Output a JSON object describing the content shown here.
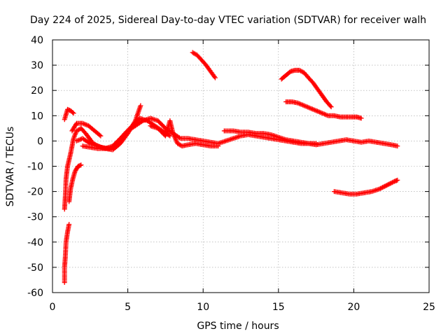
{
  "chart_data": {
    "type": "scatter",
    "title": "Day 224 of 2025, Sidereal Day-to-day VTEC variation (SDTVAR) for receiver walh",
    "xlabel": "GPS time / hours",
    "ylabel": "SDTVAR / TECUs",
    "xlim": [
      0,
      25
    ],
    "ylim": [
      -60,
      40
    ],
    "xticks": [
      0,
      5,
      10,
      15,
      20,
      25
    ],
    "yticks": [
      -60,
      -50,
      -40,
      -30,
      -20,
      -10,
      0,
      10,
      20,
      30,
      40
    ],
    "grid": true,
    "marker": "+",
    "color": "#ff0000",
    "series": [
      {
        "name": "arc-1",
        "points": [
          [
            0.8,
            -56
          ],
          [
            0.8,
            -50
          ],
          [
            0.85,
            -46
          ],
          [
            0.9,
            -40
          ],
          [
            1.0,
            -36
          ],
          [
            1.1,
            -33
          ]
        ]
      },
      {
        "name": "arc-2",
        "points": [
          [
            0.8,
            -27
          ],
          [
            0.85,
            -22
          ],
          [
            0.9,
            -15
          ],
          [
            1.0,
            -10
          ],
          [
            1.2,
            -5
          ],
          [
            1.4,
            1
          ],
          [
            1.6,
            4
          ],
          [
            1.9,
            5
          ],
          [
            2.2,
            3
          ],
          [
            2.7,
            -1
          ],
          [
            3.2,
            -2.5
          ],
          [
            3.8,
            -3
          ],
          [
            4.3,
            -1
          ],
          [
            4.8,
            3
          ],
          [
            5.3,
            6
          ],
          [
            5.8,
            9
          ],
          [
            6.3,
            8
          ],
          [
            6.8,
            6
          ],
          [
            7.3,
            4
          ],
          [
            7.8,
            2
          ]
        ]
      },
      {
        "name": "arc-3",
        "points": [
          [
            1.1,
            -24
          ],
          [
            1.2,
            -19
          ],
          [
            1.35,
            -15
          ],
          [
            1.5,
            -12
          ],
          [
            1.7,
            -10
          ],
          [
            1.9,
            -9.5
          ]
        ]
      },
      {
        "name": "arc-4",
        "points": [
          [
            0.8,
            8.5
          ],
          [
            1.0,
            12.5
          ],
          [
            1.2,
            12
          ],
          [
            1.4,
            11
          ]
        ]
      },
      {
        "name": "arc-5",
        "points": [
          [
            1.3,
            4
          ],
          [
            1.6,
            7
          ],
          [
            2.0,
            7
          ],
          [
            2.4,
            6
          ],
          [
            2.8,
            4
          ],
          [
            3.2,
            2
          ]
        ]
      },
      {
        "name": "arc-6",
        "points": [
          [
            1.6,
            0
          ],
          [
            2.0,
            1
          ],
          [
            2.5,
            -1
          ],
          [
            3.0,
            -2
          ],
          [
            3.5,
            -3
          ],
          [
            4.0,
            -3.5
          ],
          [
            4.5,
            -1
          ],
          [
            5.0,
            3
          ],
          [
            5.5,
            8
          ],
          [
            5.85,
            14
          ]
        ]
      },
      {
        "name": "arc-7",
        "points": [
          [
            2.0,
            -2
          ],
          [
            2.5,
            -2.5
          ],
          [
            3.0,
            -3
          ],
          [
            3.5,
            -3
          ],
          [
            4.0,
            -2
          ],
          [
            4.5,
            1
          ],
          [
            5.0,
            4
          ],
          [
            5.5,
            6
          ],
          [
            6.0,
            8
          ],
          [
            6.5,
            9
          ],
          [
            7.0,
            8
          ],
          [
            7.5,
            5
          ],
          [
            8.0,
            3
          ],
          [
            8.5,
            1
          ],
          [
            9.0,
            1
          ],
          [
            9.5,
            0.5
          ],
          [
            10.0,
            0
          ],
          [
            10.5,
            -0.5
          ],
          [
            11.0,
            -1
          ],
          [
            11.5,
            0
          ],
          [
            12.0,
            1
          ],
          [
            12.5,
            2
          ],
          [
            13.0,
            2.5
          ],
          [
            13.5,
            2
          ],
          [
            14.0,
            1.5
          ],
          [
            14.5,
            1
          ],
          [
            15.0,
            0.5
          ],
          [
            15.5,
            0
          ],
          [
            16.0,
            -0.5
          ],
          [
            16.5,
            -1
          ],
          [
            17.0,
            -1
          ],
          [
            17.5,
            -1.5
          ],
          [
            18.0,
            -1
          ],
          [
            18.5,
            -0.5
          ],
          [
            19.0,
            0
          ],
          [
            19.5,
            0.5
          ],
          [
            20.0,
            0
          ],
          [
            20.5,
            -0.5
          ],
          [
            21.0,
            0
          ],
          [
            21.5,
            -0.5
          ],
          [
            22.0,
            -1
          ],
          [
            22.5,
            -1.5
          ],
          [
            22.9,
            -2
          ]
        ]
      },
      {
        "name": "arc-8",
        "points": [
          [
            6.5,
            6
          ],
          [
            7.0,
            5
          ],
          [
            7.5,
            2
          ],
          [
            7.8,
            8
          ],
          [
            8.0,
            3
          ],
          [
            8.3,
            -1
          ],
          [
            8.6,
            -2
          ],
          [
            9.0,
            -1.5
          ],
          [
            9.5,
            -1
          ],
          [
            10.0,
            -1.5
          ],
          [
            10.5,
            -2
          ],
          [
            11.0,
            -2
          ]
        ]
      },
      {
        "name": "arc-9",
        "points": [
          [
            11.4,
            4
          ],
          [
            12.0,
            4
          ],
          [
            12.5,
            3.5
          ],
          [
            13.0,
            3.5
          ],
          [
            13.5,
            3
          ],
          [
            14.0,
            3
          ],
          [
            14.5,
            2.5
          ],
          [
            15.0,
            1.5
          ],
          [
            15.5,
            0.5
          ],
          [
            16.0,
            0
          ],
          [
            16.5,
            -0.5
          ],
          [
            17.0,
            -1
          ],
          [
            17.5,
            -1
          ]
        ]
      },
      {
        "name": "arc-10",
        "points": [
          [
            9.3,
            35
          ],
          [
            9.6,
            34
          ],
          [
            9.9,
            32
          ],
          [
            10.2,
            30
          ],
          [
            10.5,
            27.5
          ],
          [
            10.8,
            25
          ]
        ]
      },
      {
        "name": "arc-11",
        "points": [
          [
            15.2,
            24.5
          ],
          [
            15.5,
            26
          ],
          [
            15.8,
            27.5
          ],
          [
            16.1,
            28
          ],
          [
            16.4,
            28
          ],
          [
            16.7,
            27
          ],
          [
            17.0,
            25
          ],
          [
            17.3,
            23
          ],
          [
            17.6,
            20.5
          ],
          [
            17.9,
            18
          ],
          [
            18.2,
            15.5
          ],
          [
            18.5,
            13.5
          ]
        ]
      },
      {
        "name": "arc-12",
        "points": [
          [
            15.5,
            15.5
          ],
          [
            15.9,
            15.5
          ],
          [
            16.3,
            15
          ],
          [
            16.7,
            14
          ],
          [
            17.1,
            13
          ],
          [
            17.5,
            12
          ],
          [
            17.9,
            11
          ],
          [
            18.3,
            10
          ],
          [
            18.7,
            10
          ],
          [
            19.1,
            9.5
          ],
          [
            19.5,
            9.5
          ],
          [
            19.9,
            9.5
          ],
          [
            20.2,
            9.5
          ],
          [
            20.5,
            9
          ]
        ]
      },
      {
        "name": "arc-13",
        "points": [
          [
            18.7,
            -20
          ],
          [
            19.2,
            -20.5
          ],
          [
            19.7,
            -21
          ],
          [
            20.2,
            -21
          ],
          [
            20.7,
            -20.5
          ],
          [
            21.2,
            -20
          ],
          [
            21.7,
            -19
          ],
          [
            22.2,
            -17.5
          ],
          [
            22.7,
            -16
          ],
          [
            22.9,
            -15.5
          ]
        ]
      }
    ]
  }
}
